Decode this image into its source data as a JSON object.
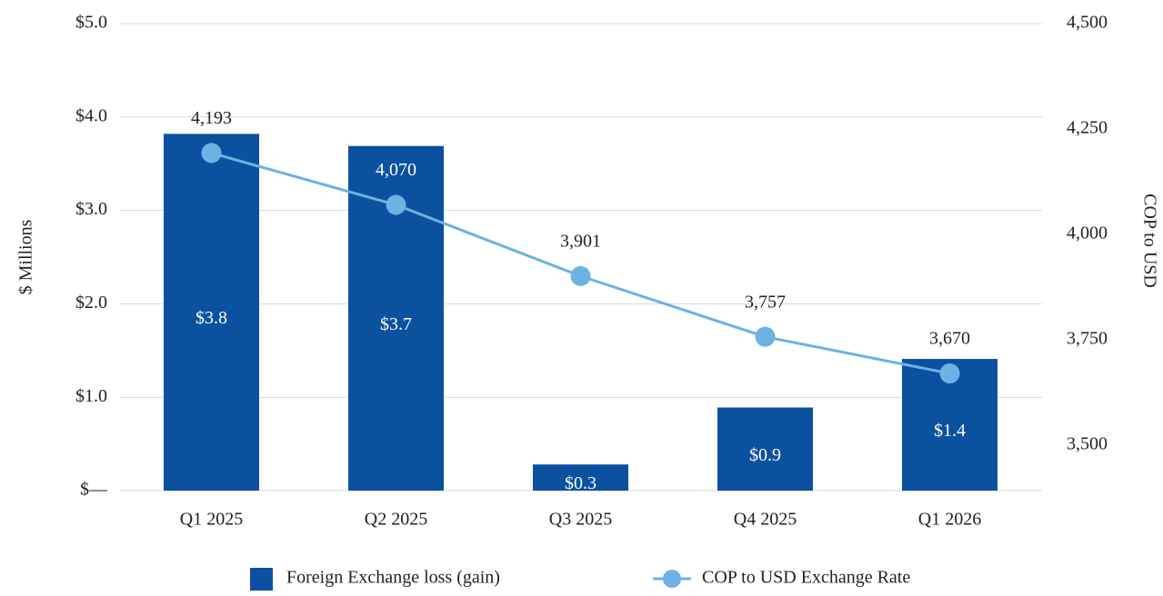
{
  "chart_data": {
    "type": "bar",
    "categories": [
      "Q1 2025",
      "Q2 2025",
      "Q3 2025",
      "Q4 2025",
      "Q1 2026"
    ],
    "series": [
      {
        "name": "Foreign Exchange loss (gain)",
        "type": "bar",
        "axis": "y",
        "color": "#0b519f",
        "values": [
          3.82,
          3.69,
          0.28,
          0.89,
          1.41
        ],
        "value_labels": [
          "$3.8",
          "$3.7",
          "$0.3",
          "$0.9",
          "$1.4"
        ]
      },
      {
        "name": "COP to USD Exchange Rate",
        "type": "line",
        "axis": "y2",
        "color": "#6cb2e2",
        "values": [
          4193,
          4070,
          3901,
          3757,
          3670
        ],
        "value_labels": [
          "4,193",
          "4,070",
          "3,901",
          "3,757",
          "3,670"
        ]
      }
    ],
    "ylabel": "$ Millions",
    "y2label": "COP to USD",
    "ylim": [
      0,
      5
    ],
    "yticks": [
      {
        "value": 0,
        "label": "$—"
      },
      {
        "value": 1,
        "label": "$1.0"
      },
      {
        "value": 2,
        "label": "$2.0"
      },
      {
        "value": 3,
        "label": "$3.0"
      },
      {
        "value": 4,
        "label": "$4.0"
      },
      {
        "value": 5,
        "label": "$5.0"
      }
    ],
    "y2lim": [
      3392,
      4500
    ],
    "y2ticks": [
      {
        "value": 3500,
        "label": "3,500"
      },
      {
        "value": 3750,
        "label": "3,750"
      },
      {
        "value": 4000,
        "label": "4,000"
      },
      {
        "value": 4250,
        "label": "4,250"
      },
      {
        "value": 4500,
        "label": "4,500"
      }
    ],
    "grid": true,
    "legend": "bottom"
  }
}
